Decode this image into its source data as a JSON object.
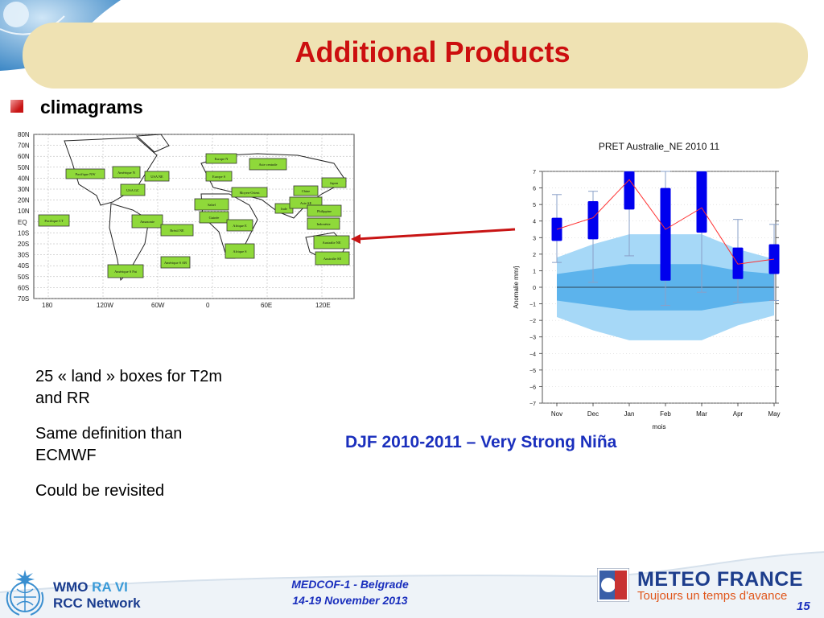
{
  "slide": {
    "title": "Additional Products",
    "bullet": "climagrams",
    "description": [
      "25 « land » boxes for T2m and RR",
      "Same definition than ECMWF",
      "Could be revisited"
    ],
    "caption": "DJF 2010-2011 – Very Strong Niña",
    "page_number": "15"
  },
  "footer": {
    "event_line1": "MEDCOF-1 - Belgrade",
    "event_line2": "14-19 November 2013",
    "wmo_line1": "WMO",
    "wmo_ra": "RA VI",
    "wmo_line2": "RCC Network",
    "mf_name": "METEO FRANCE",
    "mf_tagline": "Toujours un temps d'avance"
  },
  "map": {
    "lat_labels": [
      "80N",
      "70N",
      "60N",
      "50N",
      "40N",
      "30N",
      "20N",
      "10N",
      "EQ",
      "10S",
      "20S",
      "30S",
      "40S",
      "50S",
      "60S",
      "70S"
    ],
    "lon_labels": [
      "180",
      "120W",
      "60W",
      "0",
      "60E",
      "120E"
    ],
    "boxes": [
      "Pacifique NW",
      "Amérique N",
      "USA NE",
      "Europe N",
      "Asie centrale",
      "Europe S",
      "Chine",
      "Japon",
      "USA GC",
      "Moyen-Orient",
      "Sahel",
      "Inde",
      "Asie SE",
      "Philippine",
      "Pacifique CT",
      "Guinée",
      "Amazonie",
      "Afrique E",
      "Indonésie",
      "Brésil NE",
      "Australie NE",
      "Afrique S",
      "Australie SE",
      "Amérique S AR",
      "Amérique S Pat"
    ],
    "colors": {
      "box_fill": "#8fd93a",
      "box_stroke": "#333333"
    }
  },
  "chart_data": {
    "type": "box",
    "title": "PRET Australie_NE 2010 11",
    "xlabel": "mois",
    "ylabel": "Anomalie mm/j",
    "categories": [
      "Nov",
      "Dec",
      "Jan",
      "Feb",
      "Mar",
      "Apr",
      "May"
    ],
    "ylim": [
      -7,
      7
    ],
    "yticks": [
      7,
      6,
      5,
      4,
      3,
      2,
      1,
      0,
      -1,
      -2,
      -3,
      -4,
      -5,
      -6,
      -7
    ],
    "boxes": [
      {
        "q1": 2.8,
        "q3": 4.2,
        "whisker_low": 1.5,
        "whisker_high": 5.6
      },
      {
        "q1": 2.9,
        "q3": 5.2,
        "whisker_low": 0.3,
        "whisker_high": 5.8
      },
      {
        "q1": 4.7,
        "q3": 7.0,
        "whisker_low": 1.9,
        "whisker_high": 7.0
      },
      {
        "q1": 0.4,
        "q3": 6.0,
        "whisker_low": -1.1,
        "whisker_high": 7.0
      },
      {
        "q1": 3.3,
        "q3": 7.0,
        "whisker_low": -0.3,
        "whisker_high": 7.0
      },
      {
        "q1": 0.5,
        "q3": 2.4,
        "whisker_low": -0.9,
        "whisker_high": 4.1
      },
      {
        "q1": 0.8,
        "q3": 2.6,
        "whisker_low": -0.8,
        "whisker_high": 3.8
      }
    ],
    "median_line": [
      3.5,
      4.2,
      6.5,
      3.5,
      4.8,
      1.4,
      1.7
    ],
    "climate_outer": {
      "upper": [
        1.8,
        2.6,
        3.2,
        3.2,
        3.2,
        2.3,
        1.7
      ],
      "lower": [
        -1.8,
        -2.6,
        -3.2,
        -3.2,
        -3.2,
        -2.3,
        -1.7
      ]
    },
    "climate_inner": {
      "upper": [
        0.8,
        1.1,
        1.4,
        1.4,
        1.4,
        1.0,
        0.8
      ],
      "lower": [
        -0.8,
        -1.1,
        -1.4,
        -1.4,
        -1.4,
        -1.0,
        -0.8
      ]
    },
    "colors": {
      "box": "#0000ee",
      "median_line": "#ff3030",
      "outer_band": "#a6d8f7",
      "inner_band": "#5cb3ec",
      "arrow": "#c81414"
    }
  }
}
